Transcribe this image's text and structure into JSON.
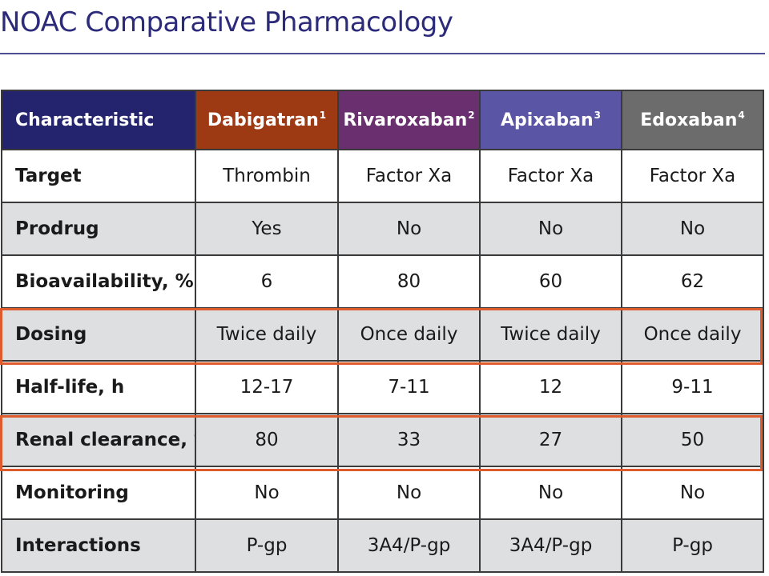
{
  "title": "NOAC Comparative Pharmacology",
  "columns": [
    {
      "label": "Characteristic",
      "sup": "",
      "color": "#24246e"
    },
    {
      "label": "Dabigatran",
      "sup": "1",
      "color": "#9e3a13"
    },
    {
      "label": "Rivaroxaban",
      "sup": "2",
      "color": "#6a2f6e"
    },
    {
      "label": "Apixaban",
      "sup": "3",
      "color": "#5b55a6"
    },
    {
      "label": "Edoxaban",
      "sup": "4",
      "color": "#6c6c6c"
    }
  ],
  "rows": [
    {
      "label": "Target",
      "values": [
        "Thrombin",
        "Factor Xa",
        "Factor Xa",
        "Factor Xa"
      ]
    },
    {
      "label": "Prodrug",
      "values": [
        "Yes",
        "No",
        "No",
        "No"
      ]
    },
    {
      "label": "Bioavailability, %",
      "values": [
        "6",
        "80",
        "60",
        "62"
      ]
    },
    {
      "label": "Dosing",
      "values": [
        "Twice daily",
        "Once daily",
        "Twice daily",
        "Once daily"
      ],
      "highlighted": true
    },
    {
      "label": "Half-life, h",
      "values": [
        "12-17",
        "7-11",
        "12",
        "9-11"
      ]
    },
    {
      "label": "Renal clearance, %",
      "values": [
        "80",
        "33",
        "27",
        "50"
      ],
      "highlighted": true
    },
    {
      "label": "Monitoring",
      "values": [
        "No",
        "No",
        "No",
        "No"
      ]
    },
    {
      "label": "Interactions",
      "values": [
        "P-gp",
        "3A4/P-gp",
        "3A4/P-gp",
        "P-gp"
      ]
    }
  ],
  "colors": {
    "title": "#2c2a7a",
    "highlight_border": "#df5a2d",
    "shaded_row": "#dedfe1"
  }
}
